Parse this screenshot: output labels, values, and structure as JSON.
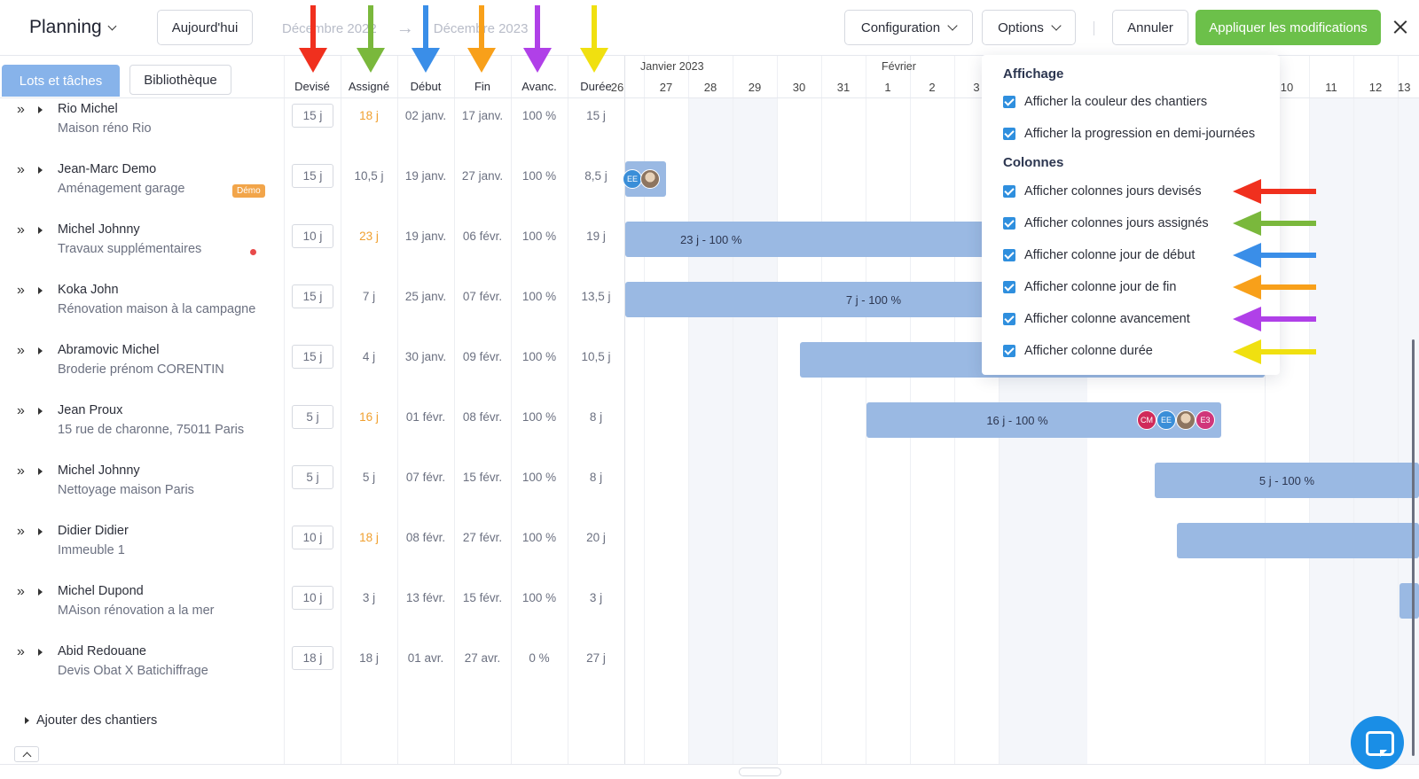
{
  "topbar": {
    "title": "Planning",
    "today_label": "Aujourd'hui",
    "date_from": "Décembre 2022",
    "date_to": "Décembre 2023",
    "config_label": "Configuration",
    "options_label": "Options",
    "cancel_label": "Annuler",
    "apply_label": "Appliquer les modifications"
  },
  "tabs": {
    "active": "Lots et tâches",
    "library": "Bibliothèque"
  },
  "columns": {
    "devise": "Devisé",
    "assigne": "Assigné",
    "debut": "Début",
    "fin": "Fin",
    "avanc": "Avanc.",
    "duree": "Durée"
  },
  "timeline": {
    "months": [
      "Janvier 2023",
      "Février"
    ],
    "days": [
      "26",
      "27",
      "28",
      "29",
      "30",
      "31",
      "1",
      "2",
      "3",
      "10",
      "11",
      "12",
      "13"
    ]
  },
  "rows": [
    {
      "client": "Rio Michel",
      "project": "Maison réno Rio",
      "devise": "15 j",
      "assigne": "18 j",
      "debut": "02 janv.",
      "fin": "17 janv.",
      "avanc": "100 %",
      "duree": "15 j"
    },
    {
      "client": "Jean-Marc Demo",
      "project": "Aménagement garage",
      "badge": "Démo",
      "devise": "15 j",
      "assigne": "10,5 j",
      "debut": "19 janv.",
      "fin": "27 janv.",
      "avanc": "100 %",
      "duree": "8,5 j"
    },
    {
      "client": "Michel Johnny",
      "project": "Travaux supplémentaires",
      "devise": "10 j",
      "assigne": "23 j",
      "debut": "19 janv.",
      "fin": "06 févr.",
      "avanc": "100 %",
      "duree": "19 j"
    },
    {
      "client": "Koka John",
      "project": "Rénovation maison à la campagne",
      "devise": "15 j",
      "assigne": "7 j",
      "debut": "25 janv.",
      "fin": "07 févr.",
      "avanc": "100 %",
      "duree": "13,5 j"
    },
    {
      "client": "Abramovic Michel",
      "project": "Broderie prénom CORENTIN",
      "devise": "15 j",
      "assigne": "4 j",
      "debut": "30 janv.",
      "fin": "09 févr.",
      "avanc": "100 %",
      "duree": "10,5 j"
    },
    {
      "client": "Jean Proux",
      "project": "15 rue de charonne, 75011 Paris",
      "devise": "5 j",
      "assigne": "16 j",
      "debut": "01 févr.",
      "fin": "08 févr.",
      "avanc": "100 %",
      "duree": "8 j"
    },
    {
      "client": "Michel Johnny",
      "project": "Nettoyage maison Paris",
      "devise": "5 j",
      "assigne": "5 j",
      "debut": "07 févr.",
      "fin": "15 févr.",
      "avanc": "100 %",
      "duree": "8 j"
    },
    {
      "client": "Didier Didier",
      "project": "Immeuble 1",
      "devise": "10 j",
      "assigne": "18 j",
      "debut": "08 févr.",
      "fin": "27 févr.",
      "avanc": "100 %",
      "duree": "20 j"
    },
    {
      "client": "Michel Dupond",
      "project": "MAison rénovation a la mer",
      "devise": "10 j",
      "assigne": "3 j",
      "debut": "13 févr.",
      "fin": "15 févr.",
      "avanc": "100 %",
      "duree": "3 j"
    },
    {
      "client": "Abid Redouane",
      "project": "Devis Obat X Batichiffrage",
      "devise": "18 j",
      "assigne": "18 j",
      "debut": "01 avr.",
      "fin": "27 avr.",
      "avanc": "0 %",
      "duree": "27 j"
    }
  ],
  "bars": {
    "b2": "23 j - 100 %",
    "b3": "7 j - 100 %",
    "b5": "16 j - 100 %",
    "b6": "5 j - 100 %"
  },
  "avatars": {
    "ee": "EE",
    "cm": "CM",
    "e3": "E3"
  },
  "add_sites": "Ajouter des chantiers",
  "dropdown": {
    "section1": "Affichage",
    "opt_color": "Afficher la couleur des chantiers",
    "opt_half": "Afficher la progression en demi-journées",
    "section2": "Colonnes",
    "opt_devise": "Afficher colonnes jours devisés",
    "opt_assigne": "Afficher colonnes jours assignés",
    "opt_debut": "Afficher colonne jour de début",
    "opt_fin": "Afficher colonne jour de fin",
    "opt_avanc": "Afficher colonne avancement",
    "opt_duree": "Afficher colonne durée"
  },
  "colors": {
    "apply_green": "#6cc04a",
    "tab_blue": "#87b3ea",
    "bar_blue": "#9ab9e3",
    "checkbox_blue": "#2f8fde",
    "assigned_orange": "#f0a030",
    "arrow_red": "#f0301e",
    "arrow_green": "#7ab83c",
    "arrow_blue": "#3a8ee8",
    "arrow_orange": "#f8a01a",
    "arrow_purple": "#b040e8",
    "arrow_yellow": "#f0e010"
  }
}
